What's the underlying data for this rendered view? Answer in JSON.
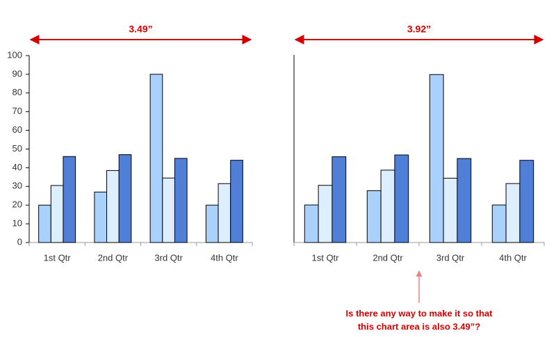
{
  "chart_data": [
    {
      "type": "bar",
      "width_label": "3.49”",
      "categories": [
        "1st Qtr",
        "2nd Qtr",
        "3rd Qtr",
        "4th Qtr"
      ],
      "series": [
        {
          "color": "#a9d1fb",
          "values": [
            20,
            27,
            90,
            20
          ]
        },
        {
          "color": "#ddeeff",
          "values": [
            30.5,
            38.5,
            34.5,
            31.5
          ]
        },
        {
          "color": "#4f7fd6",
          "values": [
            46,
            47,
            45,
            44
          ]
        }
      ],
      "ylim": [
        0,
        100
      ],
      "yticks": [
        0,
        10,
        20,
        30,
        40,
        50,
        60,
        70,
        80,
        90,
        100
      ]
    },
    {
      "type": "bar",
      "width_label": "3.92”",
      "categories": [
        "1st Qtr",
        "2nd Qtr",
        "3rd Qtr",
        "4th Qtr"
      ],
      "series": [
        {
          "color": "#a9d1fb",
          "values": [
            21,
            29,
            94,
            21
          ]
        },
        {
          "color": "#ddeeff",
          "values": [
            32,
            40.5,
            36,
            33
          ]
        },
        {
          "color": "#4f7fd6",
          "values": [
            48,
            49,
            47,
            46
          ]
        }
      ],
      "ylim": [
        0,
        105
      ],
      "annotation": [
        "Is there any way to make it so that",
        "this chart area is also 3.49”?"
      ]
    }
  ]
}
